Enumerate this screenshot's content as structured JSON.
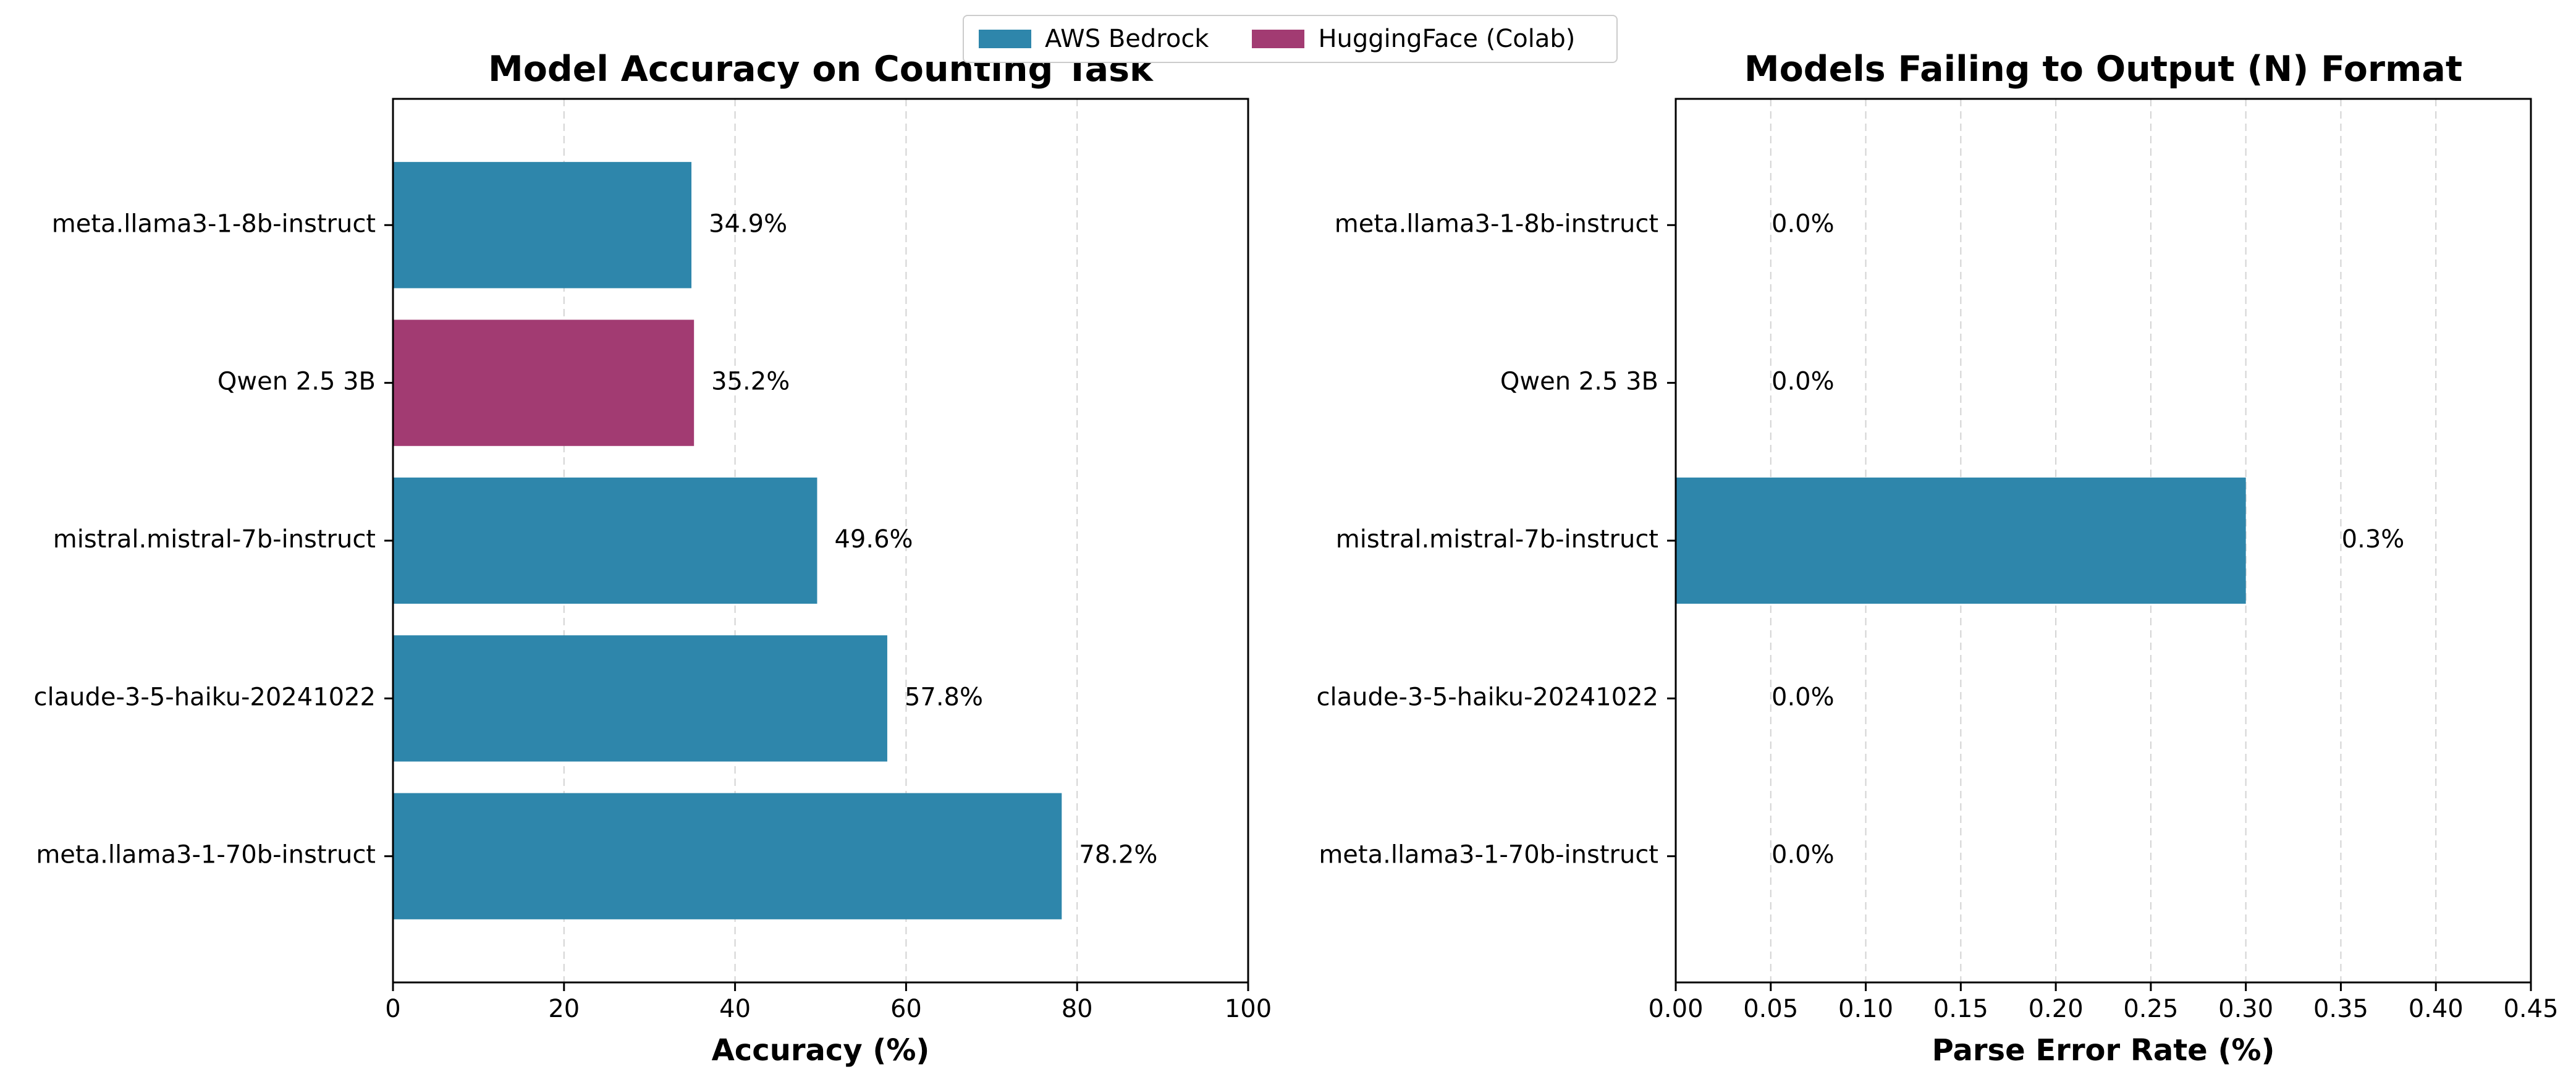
{
  "colors": {
    "aws": "#2E86AB",
    "hf": "#A23B72"
  },
  "legend": {
    "items": [
      {
        "label": "AWS Bedrock",
        "color_key": "aws"
      },
      {
        "label": "HuggingFace (Colab)",
        "color_key": "hf"
      }
    ]
  },
  "chart_data": [
    {
      "type": "bar",
      "orientation": "horizontal",
      "title": "Model Accuracy on Counting Task",
      "xlabel": "Accuracy (%)",
      "ylabel": "",
      "categories": [
        "meta.llama3-1-8b-instruct",
        "Qwen 2.5 3B",
        "mistral.mistral-7b-instruct",
        "claude-3-5-haiku-20241022",
        "meta.llama3-1-70b-instruct"
      ],
      "values": [
        34.9,
        35.2,
        49.6,
        57.8,
        78.2
      ],
      "value_labels": [
        "34.9%",
        "35.2%",
        "49.6%",
        "57.8%",
        "78.2%"
      ],
      "bar_colors": [
        "aws",
        "hf",
        "aws",
        "aws",
        "aws"
      ],
      "xlim": [
        0,
        100
      ],
      "xticks": [
        0,
        20,
        40,
        60,
        80,
        100
      ],
      "xtick_labels": [
        "0",
        "20",
        "40",
        "60",
        "80",
        "100"
      ],
      "grid": "x-dashed"
    },
    {
      "type": "bar",
      "orientation": "horizontal",
      "title": "Models Failing to Output (N) Format",
      "xlabel": "Parse Error Rate (%)",
      "ylabel": "",
      "categories": [
        "meta.llama3-1-8b-instruct",
        "Qwen 2.5 3B",
        "mistral.mistral-7b-instruct",
        "claude-3-5-haiku-20241022",
        "meta.llama3-1-70b-instruct"
      ],
      "values": [
        0.0,
        0.0,
        0.3,
        0.0,
        0.0
      ],
      "value_labels": [
        "0.0%",
        "0.0%",
        "0.3%",
        "0.0%",
        "0.0%"
      ],
      "bar_colors": [
        "aws",
        "hf",
        "aws",
        "aws",
        "aws"
      ],
      "xlim": [
        0,
        0.45
      ],
      "xticks": [
        0,
        0.05,
        0.1,
        0.15,
        0.2,
        0.25,
        0.3,
        0.35,
        0.4,
        0.45
      ],
      "xtick_labels": [
        "0.00",
        "0.05",
        "0.10",
        "0.15",
        "0.20",
        "0.25",
        "0.30",
        "0.35",
        "0.40",
        "0.45"
      ],
      "grid": "x-dashed"
    }
  ]
}
